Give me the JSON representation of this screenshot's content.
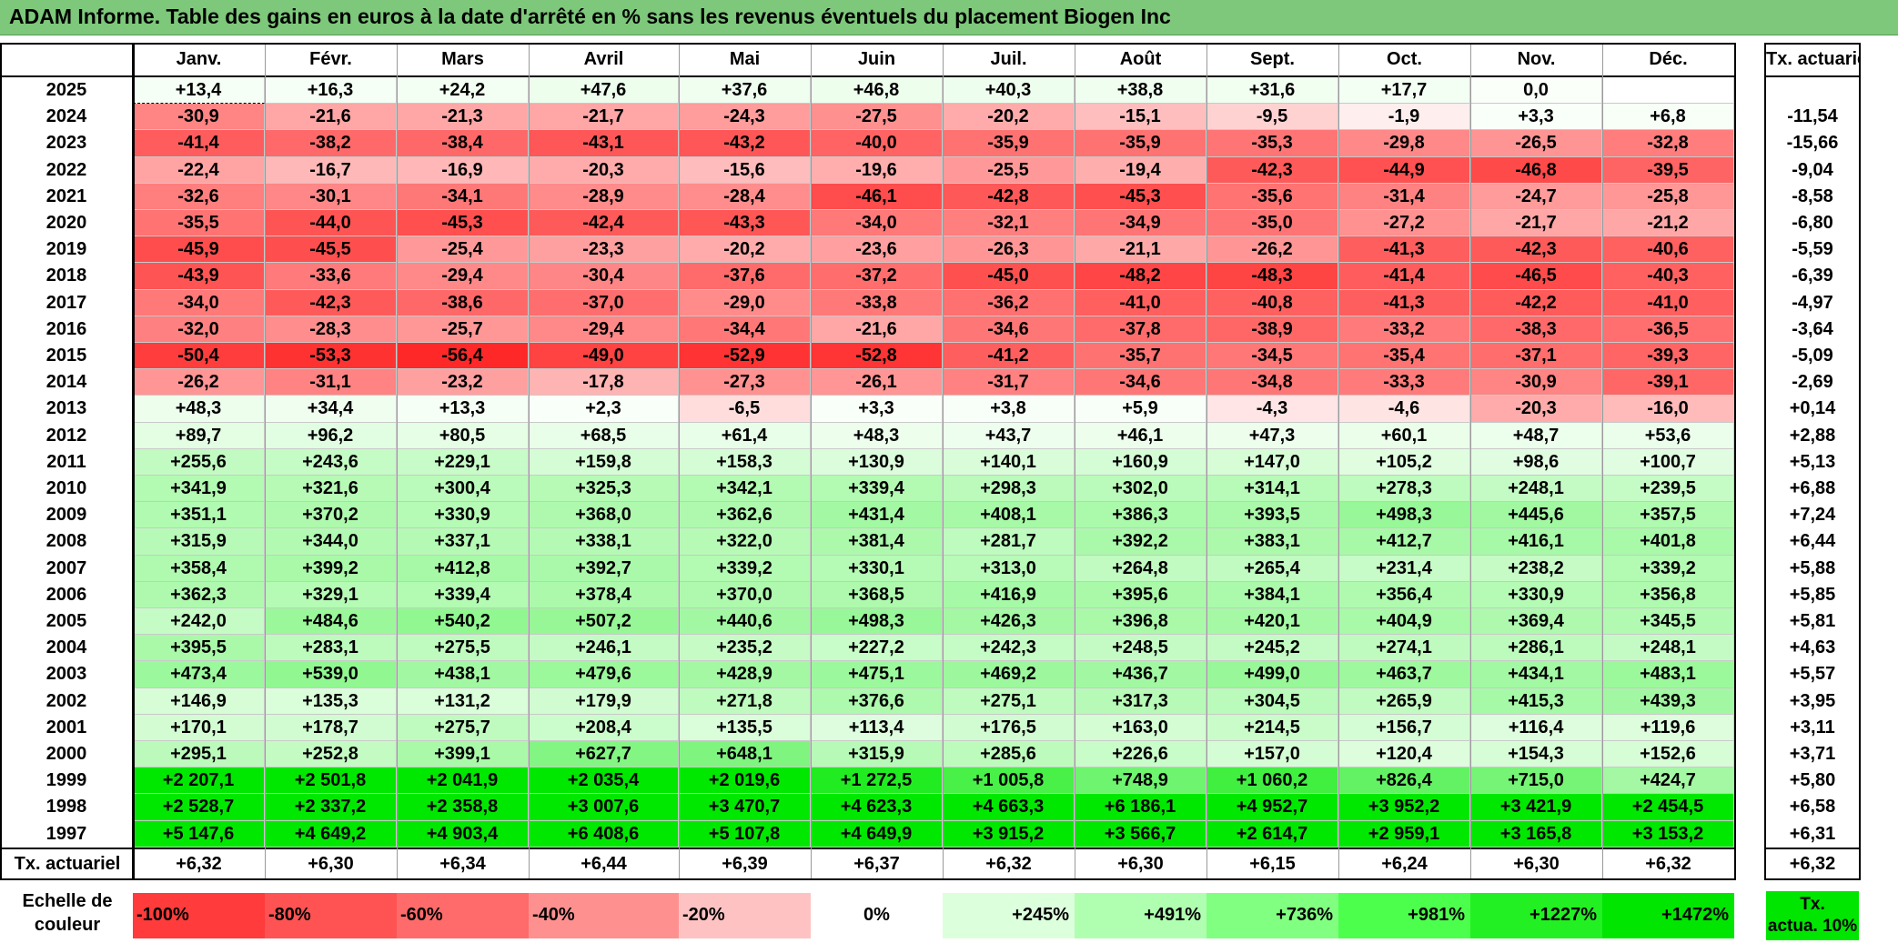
{
  "title": "ADAM Informe. Table des gains en euros à la date d'arrêté en % sans les revenus éventuels du placement Biogen Inc",
  "chart_data": {
    "type": "heatmap",
    "title": "ADAM Informe. Table des gains en euros à la date d'arrêté en % sans les revenus éventuels du placement Biogen Inc",
    "months": [
      "Janv.",
      "Févr.",
      "Mars",
      "Avril",
      "Mai",
      "Juin",
      "Juil.",
      "Août",
      "Sept.",
      "Oct.",
      "Nov.",
      "Déc."
    ],
    "rate_header": "Tx. actuariel",
    "rows": [
      {
        "year": "2025",
        "values": [
          "+13,4",
          "+16,3",
          "+24,2",
          "+47,6",
          "+37,6",
          "+46,8",
          "+40,3",
          "+38,8",
          "+31,6",
          "+17,7",
          "0,0",
          ""
        ],
        "rate": ""
      },
      {
        "year": "2024",
        "values": [
          "-30,9",
          "-21,6",
          "-21,3",
          "-21,7",
          "-24,3",
          "-27,5",
          "-20,2",
          "-15,1",
          "-9,5",
          "-1,9",
          "+3,3",
          "+6,8"
        ],
        "rate": "-11,54"
      },
      {
        "year": "2023",
        "values": [
          "-41,4",
          "-38,2",
          "-38,4",
          "-43,1",
          "-43,2",
          "-40,0",
          "-35,9",
          "-35,9",
          "-35,3",
          "-29,8",
          "-26,5",
          "-32,8"
        ],
        "rate": "-15,66"
      },
      {
        "year": "2022",
        "values": [
          "-22,4",
          "-16,7",
          "-16,9",
          "-20,3",
          "-15,6",
          "-19,6",
          "-25,5",
          "-19,4",
          "-42,3",
          "-44,9",
          "-46,8",
          "-39,5"
        ],
        "rate": "-9,04"
      },
      {
        "year": "2021",
        "values": [
          "-32,6",
          "-30,1",
          "-34,1",
          "-28,9",
          "-28,4",
          "-46,1",
          "-42,8",
          "-45,3",
          "-35,6",
          "-31,4",
          "-24,7",
          "-25,8"
        ],
        "rate": "-8,58"
      },
      {
        "year": "2020",
        "values": [
          "-35,5",
          "-44,0",
          "-45,3",
          "-42,4",
          "-43,3",
          "-34,0",
          "-32,1",
          "-34,9",
          "-35,0",
          "-27,2",
          "-21,7",
          "-21,2"
        ],
        "rate": "-6,80"
      },
      {
        "year": "2019",
        "values": [
          "-45,9",
          "-45,5",
          "-25,4",
          "-23,3",
          "-20,2",
          "-23,6",
          "-26,3",
          "-21,1",
          "-26,2",
          "-41,3",
          "-42,3",
          "-40,6"
        ],
        "rate": "-5,59"
      },
      {
        "year": "2018",
        "values": [
          "-43,9",
          "-33,6",
          "-29,4",
          "-30,4",
          "-37,6",
          "-37,2",
          "-45,0",
          "-48,2",
          "-48,3",
          "-41,4",
          "-46,5",
          "-40,3"
        ],
        "rate": "-6,39"
      },
      {
        "year": "2017",
        "values": [
          "-34,0",
          "-42,3",
          "-38,6",
          "-37,0",
          "-29,0",
          "-33,8",
          "-36,2",
          "-41,0",
          "-40,8",
          "-41,3",
          "-42,2",
          "-41,0"
        ],
        "rate": "-4,97"
      },
      {
        "year": "2016",
        "values": [
          "-32,0",
          "-28,3",
          "-25,7",
          "-29,4",
          "-34,4",
          "-21,6",
          "-34,6",
          "-37,8",
          "-38,9",
          "-33,2",
          "-38,3",
          "-36,5"
        ],
        "rate": "-3,64"
      },
      {
        "year": "2015",
        "values": [
          "-50,4",
          "-53,3",
          "-56,4",
          "-49,0",
          "-52,9",
          "-52,8",
          "-41,2",
          "-35,7",
          "-34,5",
          "-35,4",
          "-37,1",
          "-39,3"
        ],
        "rate": "-5,09"
      },
      {
        "year": "2014",
        "values": [
          "-26,2",
          "-31,1",
          "-23,2",
          "-17,8",
          "-27,3",
          "-26,1",
          "-31,7",
          "-34,6",
          "-34,8",
          "-33,3",
          "-30,9",
          "-39,1"
        ],
        "rate": "-2,69"
      },
      {
        "year": "2013",
        "values": [
          "+48,3",
          "+34,4",
          "+13,3",
          "+2,3",
          "-6,5",
          "+3,3",
          "+3,8",
          "+5,9",
          "-4,3",
          "-4,6",
          "-20,3",
          "-16,0"
        ],
        "rate": "+0,14"
      },
      {
        "year": "2012",
        "values": [
          "+89,7",
          "+96,2",
          "+80,5",
          "+68,5",
          "+61,4",
          "+48,3",
          "+43,7",
          "+46,1",
          "+47,3",
          "+60,1",
          "+48,7",
          "+53,6"
        ],
        "rate": "+2,88"
      },
      {
        "year": "2011",
        "values": [
          "+255,6",
          "+243,6",
          "+229,1",
          "+159,8",
          "+158,3",
          "+130,9",
          "+140,1",
          "+160,9",
          "+147,0",
          "+105,2",
          "+98,6",
          "+100,7"
        ],
        "rate": "+5,13"
      },
      {
        "year": "2010",
        "values": [
          "+341,9",
          "+321,6",
          "+300,4",
          "+325,3",
          "+342,1",
          "+339,4",
          "+298,3",
          "+302,0",
          "+314,1",
          "+278,3",
          "+248,1",
          "+239,5"
        ],
        "rate": "+6,88"
      },
      {
        "year": "2009",
        "values": [
          "+351,1",
          "+370,2",
          "+330,9",
          "+368,0",
          "+362,6",
          "+431,4",
          "+408,1",
          "+386,3",
          "+393,5",
          "+498,3",
          "+445,6",
          "+357,5"
        ],
        "rate": "+7,24"
      },
      {
        "year": "2008",
        "values": [
          "+315,9",
          "+344,0",
          "+337,1",
          "+338,1",
          "+322,0",
          "+381,4",
          "+281,7",
          "+392,2",
          "+383,1",
          "+412,7",
          "+416,1",
          "+401,8"
        ],
        "rate": "+6,44"
      },
      {
        "year": "2007",
        "values": [
          "+358,4",
          "+399,2",
          "+412,8",
          "+392,7",
          "+339,2",
          "+330,1",
          "+313,0",
          "+264,8",
          "+265,4",
          "+231,4",
          "+238,2",
          "+339,2"
        ],
        "rate": "+5,88"
      },
      {
        "year": "2006",
        "values": [
          "+362,3",
          "+329,1",
          "+339,4",
          "+378,4",
          "+370,0",
          "+368,5",
          "+416,9",
          "+395,6",
          "+384,1",
          "+356,4",
          "+330,9",
          "+356,8"
        ],
        "rate": "+5,85"
      },
      {
        "year": "2005",
        "values": [
          "+242,0",
          "+484,6",
          "+540,2",
          "+507,2",
          "+440,6",
          "+498,3",
          "+426,3",
          "+396,8",
          "+420,1",
          "+404,9",
          "+369,4",
          "+345,5"
        ],
        "rate": "+5,81"
      },
      {
        "year": "2004",
        "values": [
          "+395,5",
          "+283,1",
          "+275,5",
          "+246,1",
          "+235,2",
          "+227,2",
          "+242,3",
          "+248,5",
          "+245,2",
          "+274,1",
          "+286,1",
          "+248,1"
        ],
        "rate": "+4,63"
      },
      {
        "year": "2003",
        "values": [
          "+473,4",
          "+539,0",
          "+438,1",
          "+479,6",
          "+428,9",
          "+475,1",
          "+469,2",
          "+436,7",
          "+499,0",
          "+463,7",
          "+434,1",
          "+483,1"
        ],
        "rate": "+5,57"
      },
      {
        "year": "2002",
        "values": [
          "+146,9",
          "+135,3",
          "+131,2",
          "+179,9",
          "+271,8",
          "+376,6",
          "+275,1",
          "+317,3",
          "+304,5",
          "+265,9",
          "+415,3",
          "+439,3"
        ],
        "rate": "+3,95"
      },
      {
        "year": "2001",
        "values": [
          "+170,1",
          "+178,7",
          "+275,7",
          "+208,4",
          "+135,5",
          "+113,4",
          "+176,5",
          "+163,0",
          "+214,5",
          "+156,7",
          "+116,4",
          "+119,6"
        ],
        "rate": "+3,11"
      },
      {
        "year": "2000",
        "values": [
          "+295,1",
          "+252,8",
          "+399,1",
          "+627,7",
          "+648,1",
          "+315,9",
          "+285,6",
          "+226,6",
          "+157,0",
          "+120,4",
          "+154,3",
          "+152,6"
        ],
        "rate": "+3,71"
      },
      {
        "year": "1999",
        "values": [
          "+2 207,1",
          "+2 501,8",
          "+2 041,9",
          "+2 035,4",
          "+2 019,6",
          "+1 272,5",
          "+1 005,8",
          "+748,9",
          "+1 060,2",
          "+826,4",
          "+715,0",
          "+424,7"
        ],
        "rate": "+5,80"
      },
      {
        "year": "1998",
        "values": [
          "+2 528,7",
          "+2 337,2",
          "+2 358,8",
          "+3 007,6",
          "+3 470,7",
          "+4 623,3",
          "+4 663,3",
          "+6 186,1",
          "+4 952,7",
          "+3 952,2",
          "+3 421,9",
          "+2 454,5"
        ],
        "rate": "+6,58"
      },
      {
        "year": "1997",
        "values": [
          "+5 147,6",
          "+4 649,2",
          "+4 903,4",
          "+6 408,6",
          "+5 107,8",
          "+4 649,9",
          "+3 915,2",
          "+3 566,7",
          "+2 614,7",
          "+2 959,1",
          "+3 165,8",
          "+3 153,2"
        ],
        "rate": "+6,31"
      }
    ],
    "footer": {
      "label": "Tx. actuariel",
      "values": [
        "+6,32",
        "+6,30",
        "+6,34",
        "+6,44",
        "+6,39",
        "+6,37",
        "+6,32",
        "+6,30",
        "+6,15",
        "+6,24",
        "+6,30",
        "+6,32"
      ],
      "rate": "+6,32"
    },
    "scale": {
      "label_line1": "Echelle de",
      "label_line2": "couleur",
      "items": [
        "-100%",
        "-80%",
        "-60%",
        "-40%",
        "-20%",
        "0%",
        "+245%",
        "+491%",
        "+736%",
        "+981%",
        "+1227%",
        "+1472%"
      ],
      "colors": [
        "#ff3b3b",
        "#ff5252",
        "#ff6a6a",
        "#ff9090",
        "#ffc2c2",
        "#ffffff",
        "#dcffdc",
        "#b0ffb0",
        "#80ff80",
        "#4dff4d",
        "#22f022",
        "#00e600"
      ]
    },
    "legend_box": {
      "line1": "Tx.",
      "line2": "actua. 10%",
      "color": "#00e600"
    }
  }
}
